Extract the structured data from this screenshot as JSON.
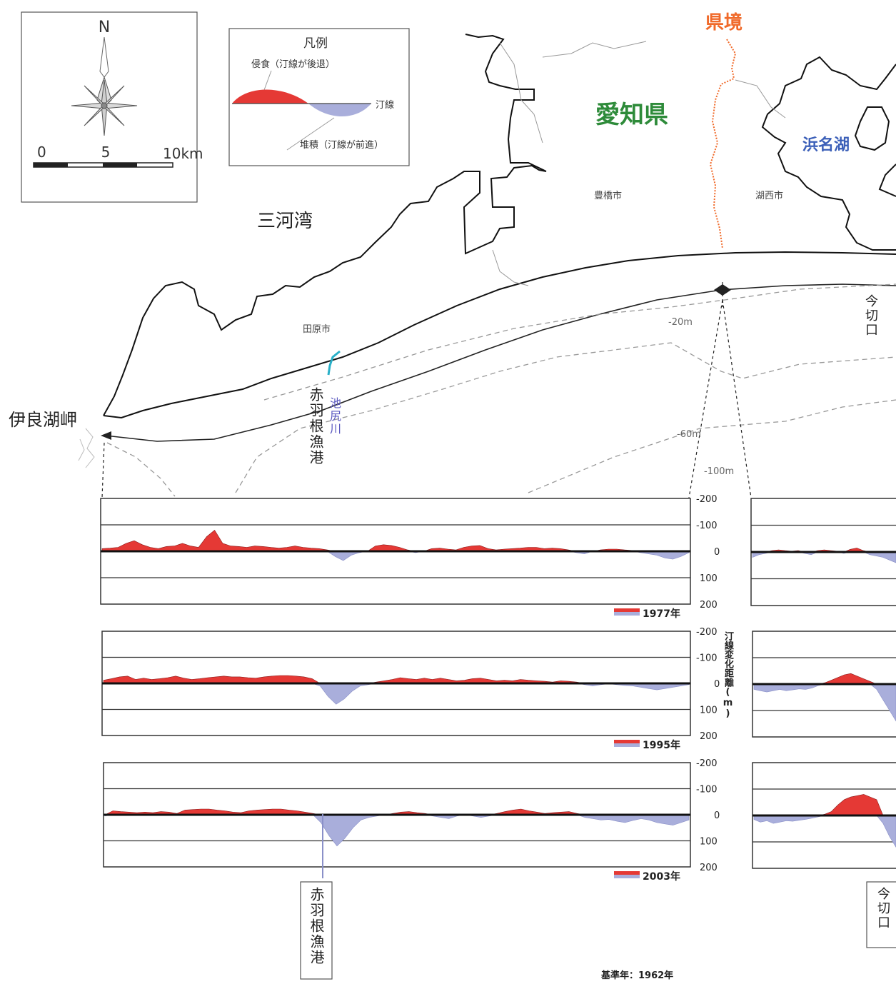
{
  "colors": {
    "erosion": "#e53935",
    "accretion": "#a9aedb",
    "prefecture_border": "#f06a2a",
    "aichi": "#2e8b3a",
    "hamanako": "#3b5fb8",
    "river": "#2ab0c8",
    "river_label": "#5a58c0"
  },
  "compass": {
    "north": "N",
    "scale_ticks": [
      "0",
      "5",
      "10km"
    ]
  },
  "legend": {
    "title": "凡例",
    "erosion": "侵食（汀線が後退）",
    "shoreline": "汀線",
    "accretion": "堆積（汀線が前進）"
  },
  "map_labels": {
    "prefecture_border": "県境",
    "aichi": "愛知県",
    "hamanako": "浜名湖",
    "mikawa_bay": "三河湾",
    "toyohashi": "豊橋市",
    "kosai": "湖西市",
    "tahara": "田原市",
    "irago": "伊良湖岬",
    "akabane_port": "赤羽根漁港",
    "ikesawa_river": "池尻川",
    "imagire": "今切口",
    "depth_20": "-20m",
    "depth_60": "-60m",
    "depth_100": "-100m"
  },
  "panels": [
    {
      "year": "1977年"
    },
    {
      "year": "1995年"
    },
    {
      "year": "2003年"
    }
  ],
  "axis": {
    "ticks": [
      "-200",
      "-100",
      "0",
      "100",
      "200"
    ],
    "label": "汀線変化距離(m)"
  },
  "bottom": {
    "akabane": "赤羽根漁港",
    "imagire": "今切口",
    "base_year": "基準年：1962年"
  },
  "chart_data": {
    "type": "area",
    "title": "",
    "ylabel": "汀線変化距離(m)",
    "ylim": [
      -200,
      200
    ],
    "base_year": "1962年",
    "x_range": [
      "伊良湖岬",
      "今切口"
    ],
    "series": [
      {
        "name": "1977年",
        "values": [
          10,
          12,
          15,
          30,
          40,
          25,
          15,
          10,
          18,
          20,
          30,
          20,
          15,
          55,
          80,
          30,
          20,
          18,
          15,
          20,
          18,
          15,
          12,
          15,
          20,
          15,
          12,
          10,
          5,
          -20,
          -35,
          -15,
          -5,
          0,
          20,
          25,
          22,
          15,
          5,
          -5,
          0,
          10,
          12,
          8,
          5,
          15,
          20,
          22,
          10,
          5,
          8,
          10,
          12,
          15,
          15,
          10,
          12,
          10,
          5,
          -5,
          -10,
          0,
          5,
          8,
          8,
          5,
          3,
          -5,
          -10,
          -15,
          -25,
          -30,
          -20,
          -5
        ]
      },
      {
        "name": "1995年",
        "values": [
          12,
          18,
          25,
          28,
          15,
          20,
          15,
          18,
          22,
          28,
          20,
          15,
          18,
          22,
          25,
          28,
          25,
          25,
          22,
          20,
          25,
          28,
          30,
          30,
          28,
          25,
          18,
          -10,
          -50,
          -80,
          -60,
          -30,
          -10,
          -5,
          5,
          10,
          15,
          22,
          18,
          15,
          20,
          15,
          20,
          15,
          10,
          12,
          18,
          20,
          15,
          10,
          12,
          10,
          15,
          12,
          10,
          8,
          5,
          10,
          8,
          5,
          -5,
          -10,
          -5,
          -2,
          -5,
          -8,
          -10,
          -15,
          -20,
          -25,
          -20,
          -15,
          -10,
          -5
        ]
      },
      {
        "name": "2003年",
        "values": [
          -5,
          15,
          12,
          10,
          8,
          10,
          8,
          12,
          10,
          5,
          18,
          20,
          22,
          22,
          18,
          15,
          10,
          8,
          15,
          18,
          20,
          22,
          22,
          18,
          15,
          10,
          5,
          -30,
          -80,
          -120,
          -90,
          -50,
          -20,
          -10,
          -5,
          0,
          5,
          10,
          12,
          8,
          5,
          -5,
          -10,
          -15,
          -5,
          0,
          -5,
          -10,
          -5,
          5,
          12,
          18,
          22,
          15,
          10,
          5,
          8,
          10,
          12,
          5,
          -10,
          -15,
          -20,
          -18,
          -25,
          -30,
          -22,
          -15,
          -20,
          -30,
          -35,
          -40,
          -30,
          -20
        ]
      }
    ],
    "right_segment_series": [
      {
        "name": "1977年",
        "values": [
          -20,
          -10,
          -5,
          5,
          8,
          5,
          3,
          5,
          -5,
          -10,
          5,
          8,
          5,
          3,
          -5,
          10,
          15,
          5,
          -10,
          -15,
          -20,
          -30,
          -40
        ]
      },
      {
        "name": "1995年",
        "values": [
          -20,
          -25,
          -30,
          -25,
          -20,
          -25,
          -22,
          -18,
          -20,
          -15,
          -5,
          5,
          15,
          25,
          35,
          40,
          30,
          20,
          10,
          -20,
          -60,
          -100,
          -140
        ]
      },
      {
        "name": "2003年",
        "values": [
          -15,
          -25,
          -20,
          -30,
          -25,
          -20,
          -22,
          -18,
          -15,
          -10,
          -5,
          5,
          15,
          40,
          60,
          70,
          75,
          80,
          70,
          60,
          -30,
          -80,
          -120
        ]
      }
    ]
  }
}
